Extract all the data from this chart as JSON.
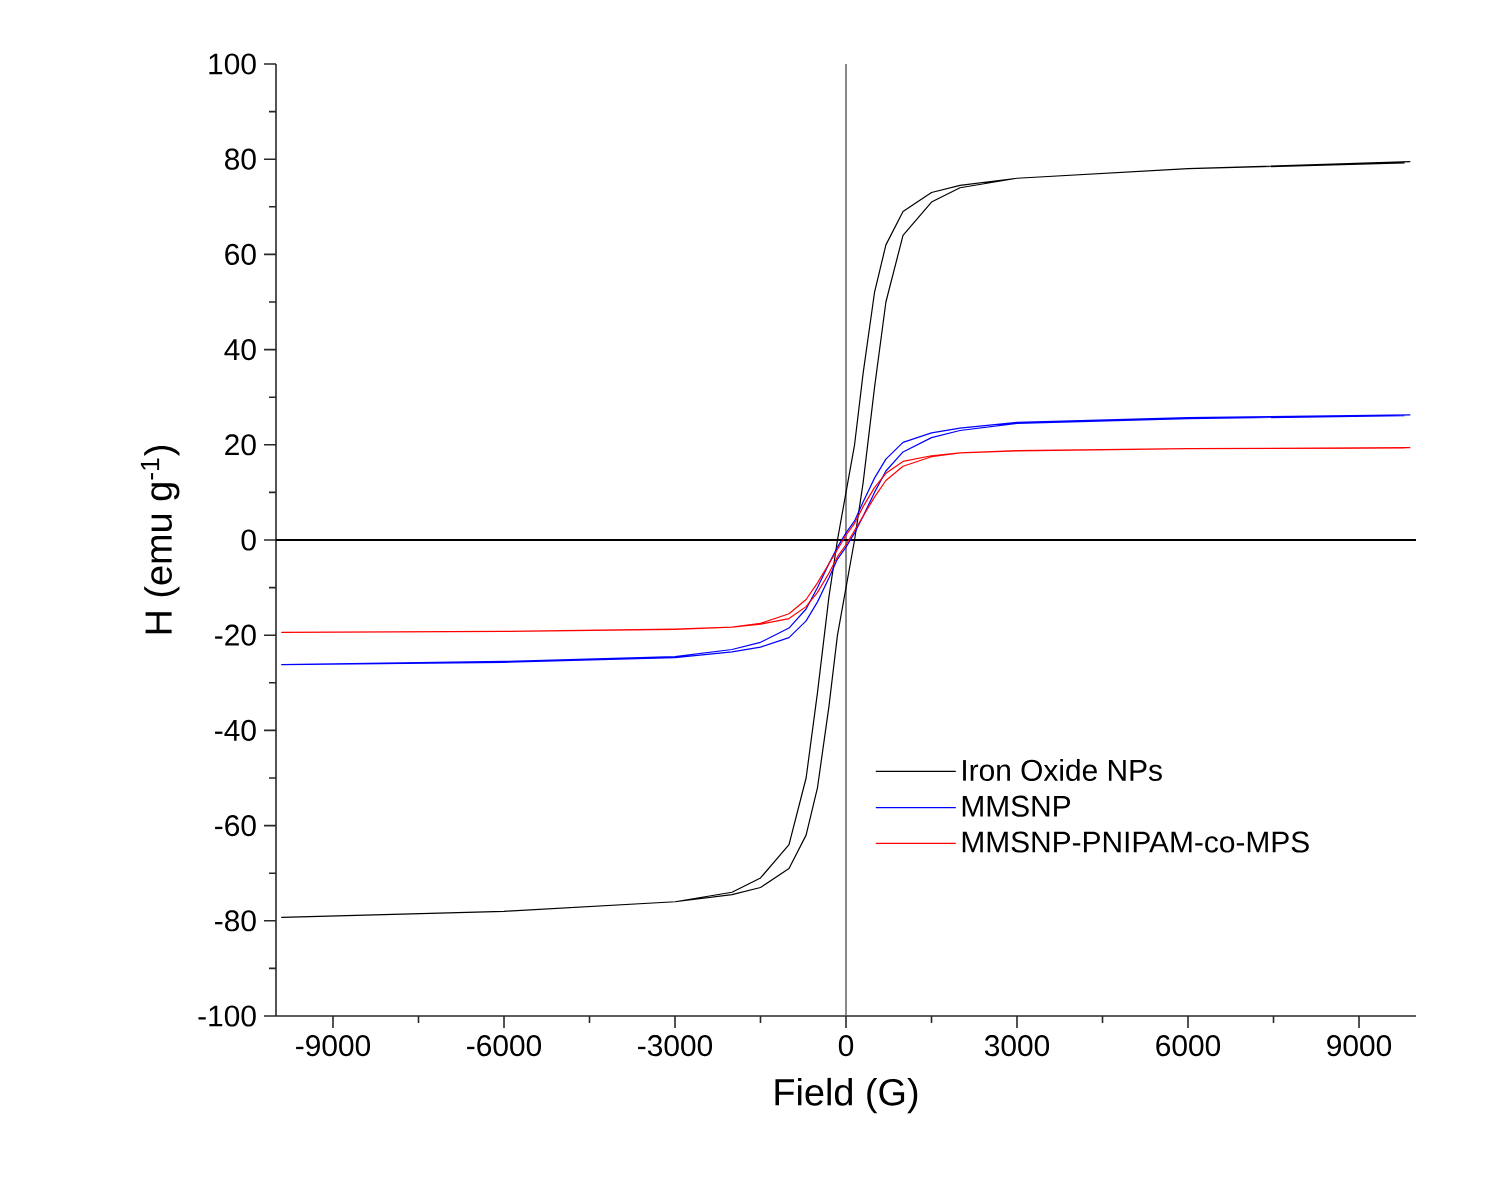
{
  "chart_data": {
    "type": "line",
    "xlabel": "Field (G)",
    "ylabel": "H (emu g$^{-1}$)",
    "xlim": [
      -10000,
      10000
    ],
    "ylim": [
      -100,
      100
    ],
    "xticks": [
      -9000,
      -6000,
      -3000,
      0,
      3000,
      6000,
      9000
    ],
    "yticks": [
      -100,
      -80,
      -60,
      -40,
      -20,
      0,
      20,
      40,
      60,
      80,
      100
    ],
    "legend": "bottom right",
    "marker": "none",
    "line_style": "solid",
    "ref_lines": [
      {
        "axis": "x",
        "value": 0,
        "color": "#555555"
      },
      {
        "axis": "y",
        "value": 0,
        "color": "#000000"
      }
    ],
    "series": [
      {
        "name": "Iron Oxide NPs",
        "color": "#000000",
        "x": [
          9900,
          6000,
          3000,
          2000,
          1500,
          1000,
          700,
          500,
          300,
          150,
          0,
          -150,
          -300,
          -500,
          -700,
          -1000,
          -1500,
          -2000,
          -3000,
          -6000,
          -9900,
          -6000,
          -3000,
          -2000,
          -1500,
          -1000,
          -700,
          -500,
          -300,
          -150,
          0,
          150,
          300,
          500,
          700,
          1000,
          1500,
          2000,
          3000,
          6000,
          9800
        ],
        "values": [
          79.5,
          78,
          76,
          74.5,
          73,
          69,
          62,
          52,
          35,
          20,
          10,
          0,
          -12,
          -32,
          -50,
          -64,
          -71,
          -74,
          -76,
          -78,
          -79.3,
          -78,
          -76,
          -74.5,
          -73,
          -69,
          -62,
          -52,
          -35,
          -20,
          -10,
          0,
          12,
          32,
          50,
          64,
          71,
          74,
          76,
          78,
          79.2
        ]
      },
      {
        "name": "MMSNP",
        "color": "#0000ff",
        "x": [
          9900,
          6000,
          3000,
          2000,
          1500,
          1000,
          700,
          500,
          300,
          150,
          0,
          -150,
          -300,
          -500,
          -700,
          -1000,
          -1500,
          -2000,
          -3000,
          -6000,
          -9900,
          -6000,
          -3000,
          -2000,
          -1500,
          -1000,
          -700,
          -500,
          -300,
          -150,
          0,
          150,
          300,
          500,
          700,
          1000,
          1500,
          2000,
          3000,
          6000,
          9800
        ],
        "values": [
          26.3,
          25.7,
          24.7,
          23.5,
          22.5,
          20.5,
          17,
          13,
          8,
          4,
          1.5,
          -1.5,
          -5,
          -10,
          -14.5,
          -18.5,
          -21.5,
          -23,
          -24.5,
          -25.5,
          -26.2,
          -25.7,
          -24.7,
          -23.5,
          -22.5,
          -20.5,
          -17,
          -13,
          -8,
          -4,
          -1.5,
          1.5,
          5,
          10,
          14.5,
          18.5,
          21.5,
          23,
          24.5,
          25.5,
          26.1
        ]
      },
      {
        "name": "MMSNP-PNIPAM-co-MPS",
        "color": "#ff0000",
        "x": [
          9900,
          6000,
          3000,
          2000,
          1500,
          1000,
          700,
          500,
          300,
          150,
          0,
          -150,
          -300,
          -500,
          -700,
          -1000,
          -1500,
          -2000,
          -3000,
          -6000,
          -9900,
          -6000,
          -3000,
          -2000,
          -1500,
          -1000,
          -700,
          -500,
          -300,
          -150,
          0,
          150,
          300,
          500,
          700,
          1000,
          1500,
          2000,
          3000,
          6000,
          9800
        ],
        "values": [
          19.4,
          19.2,
          18.7,
          18.3,
          17.7,
          16.5,
          14,
          11,
          7,
          3.5,
          1,
          -2,
          -5,
          -9,
          -12.5,
          -15.5,
          -17.5,
          -18.3,
          -18.8,
          -19.2,
          -19.4,
          -19.2,
          -18.7,
          -18.3,
          -17.7,
          -16.5,
          -14,
          -11,
          -7,
          -3.5,
          -1,
          2,
          5,
          9,
          12.5,
          15.5,
          17.5,
          18.3,
          18.8,
          19.2,
          19.3
        ]
      }
    ]
  }
}
